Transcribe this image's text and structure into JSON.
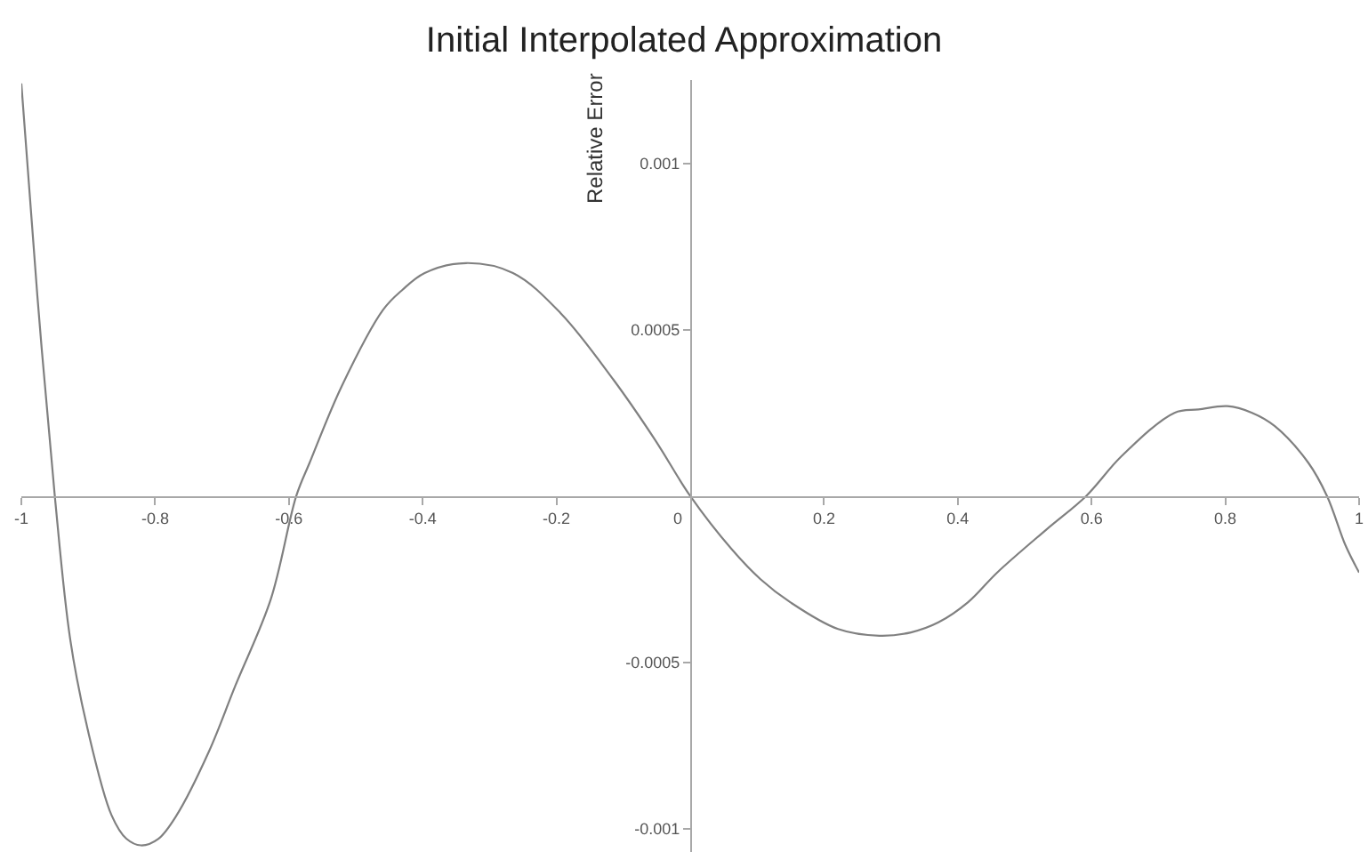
{
  "chart_data": {
    "type": "line",
    "title": "Initial Interpolated Approximation",
    "ylabel": "Relative Error",
    "x": [
      -1,
      -0.976,
      -0.95,
      -0.927,
      -0.901,
      -0.865,
      -0.843,
      -0.821,
      -0.795,
      -0.768,
      -0.72,
      -0.68,
      -0.627,
      -0.589,
      -0.569,
      -0.521,
      -0.459,
      -0.43,
      -0.397,
      -0.335,
      -0.265,
      -0.194,
      -0.115,
      -0.053,
      0,
      0.062,
      0.105,
      0.15,
      0.221,
      0.283,
      0.33,
      0.371,
      0.415,
      0.459,
      0.533,
      0.592,
      0.645,
      0.724,
      0.76,
      0.803,
      0.84,
      0.874,
      0.924,
      0.952,
      0.98,
      1
    ],
    "series": [
      {
        "color": "#808080",
        "values": [
          0.00124,
          0.0006,
          0,
          -0.00043,
          -0.0007,
          -0.00096,
          -0.00103,
          -0.00105,
          -0.00103,
          -0.00096,
          -0.00077,
          -0.00057,
          -0.00031,
          0,
          0.0001,
          0.00033,
          0.00056,
          0.00062,
          0.00067,
          0.0007,
          0.00067,
          0.00055,
          0.00035,
          0.00017,
          0,
          -0.00016,
          -0.00025,
          -0.00032,
          -0.0004,
          -0.00042,
          -0.00041,
          -0.00038,
          -0.00032,
          -0.00023,
          -0.0001,
          0,
          0.00012,
          0.00025,
          0.00026,
          0.00027,
          0.00025,
          0.00021,
          0.0001,
          0,
          -0.00015,
          -0.00023
        ]
      }
    ],
    "xlim": [
      -1,
      1
    ],
    "ylim": [
      -0.00107,
      0.00125
    ],
    "xticks": [
      -1,
      -0.8,
      -0.6,
      -0.4,
      -0.2,
      0,
      0.2,
      0.4,
      0.6,
      0.8,
      1
    ],
    "yticks": [
      -0.001,
      -0.0005,
      0.0005,
      0.001
    ],
    "grid": false,
    "line_style": "solid",
    "marker": "none"
  }
}
